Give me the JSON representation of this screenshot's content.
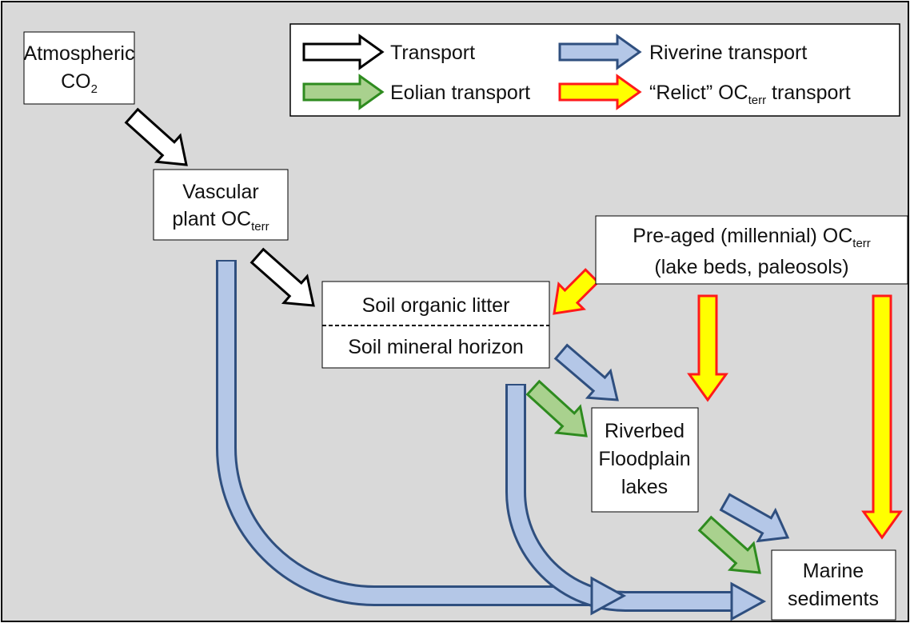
{
  "legend": {
    "transport": "Transport",
    "riverine": "Riverine transport",
    "eolian": "Eolian transport",
    "relict": {
      "text": "“Relict” OC",
      "sub": "terr",
      "post": " transport"
    }
  },
  "nodes": {
    "atmospheric": {
      "lines": [
        "Atmospheric",
        "CO"
      ],
      "sub": "2"
    },
    "vascular": {
      "lines": [
        "Vascular",
        "plant OC"
      ],
      "sub": "terr"
    },
    "soil": {
      "lines": [
        "Soil organic litter",
        "Soil mineral horizon"
      ]
    },
    "preaged": {
      "lines": [
        "Pre-aged (millennial) OC",
        "(lake beds, paleosols)"
      ],
      "sub": "terr"
    },
    "riverbed": {
      "lines": [
        "Riverbed",
        "Floodplain",
        "lakes"
      ]
    },
    "marine": {
      "lines": [
        "Marine",
        "sediments"
      ]
    }
  }
}
